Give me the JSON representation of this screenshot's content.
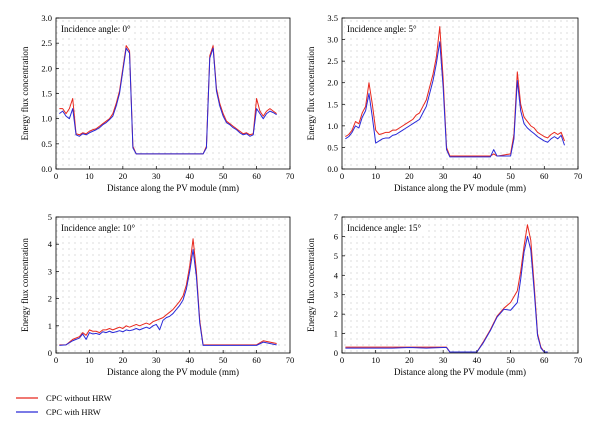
{
  "colors": {
    "without_hrw": "#e8281e",
    "with_hrw": "#2a2ad8",
    "dot_grid": "#9a9a9a"
  },
  "legend": {
    "without_hrw": "CPC without HRW",
    "with_hrw": "CPC with HRW"
  },
  "chart_data": [
    {
      "type": "line",
      "annotation": "Incidence angle: 0°",
      "xlabel": "Distance along the PV module (mm)",
      "ylabel": "Energy flux concentration",
      "xlim": [
        0,
        70
      ],
      "ylim": [
        0,
        3.0
      ],
      "xticks": [
        0,
        10,
        20,
        30,
        40,
        50,
        60,
        70
      ],
      "yticks": [
        0.0,
        0.5,
        1.0,
        1.5,
        2.0,
        2.5,
        3.0
      ],
      "ytick_decimals": 1,
      "grid": "dotted",
      "series": [
        {
          "name": "CPC without HRW",
          "x": [
            1,
            2,
            3,
            4,
            5,
            6,
            7,
            8,
            9,
            10,
            11,
            12,
            13,
            14,
            15,
            16,
            17,
            18,
            19,
            20,
            21,
            22,
            23,
            24,
            25,
            30,
            35,
            40,
            44,
            45,
            46,
            47,
            48,
            49,
            50,
            51,
            52,
            53,
            54,
            55,
            56,
            57,
            58,
            59,
            60,
            61,
            62,
            63,
            64,
            65,
            66
          ],
          "y": [
            1.2,
            1.2,
            1.1,
            1.2,
            1.4,
            0.7,
            0.68,
            0.72,
            0.7,
            0.75,
            0.78,
            0.8,
            0.85,
            0.9,
            0.95,
            1.0,
            1.1,
            1.3,
            1.55,
            2.0,
            2.45,
            2.35,
            0.45,
            0.3,
            0.3,
            0.3,
            0.3,
            0.3,
            0.3,
            0.45,
            2.25,
            2.45,
            1.6,
            1.3,
            1.1,
            0.95,
            0.9,
            0.85,
            0.8,
            0.75,
            0.7,
            0.72,
            0.68,
            0.7,
            1.4,
            1.15,
            1.05,
            1.15,
            1.2,
            1.15,
            1.1
          ]
        },
        {
          "name": "CPC with HRW",
          "x": [
            1,
            2,
            3,
            4,
            5,
            6,
            7,
            8,
            9,
            10,
            11,
            12,
            13,
            14,
            15,
            16,
            17,
            18,
            19,
            20,
            21,
            22,
            23,
            24,
            25,
            30,
            35,
            40,
            44,
            45,
            46,
            47,
            48,
            49,
            50,
            51,
            52,
            53,
            54,
            55,
            56,
            57,
            58,
            59,
            60,
            61,
            62,
            63,
            64,
            65,
            66
          ],
          "y": [
            1.1,
            1.15,
            1.05,
            1.0,
            1.2,
            0.68,
            0.65,
            0.7,
            0.68,
            0.72,
            0.75,
            0.78,
            0.82,
            0.88,
            0.92,
            0.98,
            1.05,
            1.25,
            1.5,
            1.95,
            2.4,
            2.3,
            0.42,
            0.3,
            0.3,
            0.3,
            0.3,
            0.3,
            0.3,
            0.42,
            2.2,
            2.4,
            1.55,
            1.25,
            1.05,
            0.92,
            0.88,
            0.82,
            0.78,
            0.72,
            0.68,
            0.7,
            0.65,
            0.68,
            1.2,
            1.1,
            1.0,
            1.1,
            1.15,
            1.12,
            1.08
          ]
        }
      ]
    },
    {
      "type": "line",
      "annotation": "Incidence angle: 5°",
      "xlabel": "Distance along the PV module (mm)",
      "ylabel": "Energy flux concentration",
      "xlim": [
        0,
        70
      ],
      "ylim": [
        0,
        3.5
      ],
      "xticks": [
        0,
        10,
        20,
        30,
        40,
        50,
        60,
        70
      ],
      "yticks": [
        0.0,
        0.5,
        1.0,
        1.5,
        2.0,
        2.5,
        3.0,
        3.5
      ],
      "ytick_decimals": 1,
      "grid": "dotted",
      "series": [
        {
          "name": "CPC without HRW",
          "x": [
            1,
            2,
            3,
            4,
            5,
            6,
            7,
            8,
            9,
            10,
            11,
            12,
            13,
            14,
            15,
            16,
            17,
            18,
            19,
            20,
            21,
            22,
            23,
            24,
            25,
            26,
            27,
            28,
            29,
            30,
            31,
            32,
            33,
            35,
            40,
            44,
            45,
            46,
            50,
            51,
            52,
            53,
            54,
            55,
            56,
            57,
            58,
            59,
            60,
            61,
            62,
            63,
            64,
            65,
            66
          ],
          "y": [
            0.75,
            0.8,
            0.9,
            1.1,
            1.05,
            1.3,
            1.45,
            2.0,
            1.5,
            0.9,
            0.8,
            0.82,
            0.85,
            0.85,
            0.9,
            0.9,
            0.95,
            1.0,
            1.05,
            1.1,
            1.15,
            1.25,
            1.3,
            1.45,
            1.6,
            1.9,
            2.2,
            2.6,
            3.3,
            2.1,
            0.5,
            0.3,
            0.3,
            0.3,
            0.3,
            0.3,
            0.35,
            0.3,
            0.35,
            0.8,
            2.25,
            1.5,
            1.2,
            1.1,
            1.0,
            0.95,
            0.85,
            0.8,
            0.75,
            0.72,
            0.8,
            0.85,
            0.8,
            0.85,
            0.65
          ]
        },
        {
          "name": "CPC with HRW",
          "x": [
            1,
            2,
            3,
            4,
            5,
            6,
            7,
            8,
            9,
            10,
            11,
            12,
            13,
            14,
            15,
            16,
            17,
            18,
            19,
            20,
            21,
            22,
            23,
            24,
            25,
            26,
            27,
            28,
            29,
            30,
            31,
            32,
            33,
            35,
            40,
            44,
            45,
            46,
            50,
            51,
            52,
            53,
            54,
            55,
            56,
            57,
            58,
            59,
            60,
            61,
            62,
            63,
            64,
            65,
            66
          ],
          "y": [
            0.7,
            0.75,
            0.85,
            1.0,
            0.95,
            1.2,
            1.35,
            1.75,
            1.2,
            0.6,
            0.65,
            0.7,
            0.72,
            0.72,
            0.78,
            0.8,
            0.85,
            0.9,
            0.95,
            1.0,
            1.05,
            1.1,
            1.15,
            1.3,
            1.45,
            1.75,
            2.05,
            2.45,
            2.95,
            1.9,
            0.45,
            0.28,
            0.28,
            0.28,
            0.28,
            0.28,
            0.45,
            0.3,
            0.3,
            0.7,
            2.05,
            1.35,
            1.05,
            0.95,
            0.88,
            0.82,
            0.75,
            0.7,
            0.65,
            0.62,
            0.7,
            0.75,
            0.7,
            0.78,
            0.55
          ]
        }
      ]
    },
    {
      "type": "line",
      "annotation": "Incidence angle: 10°",
      "xlabel": "Distance along the PV module (mm)",
      "ylabel": "Energy flux concentration",
      "xlim": [
        0,
        70
      ],
      "ylim": [
        0,
        5
      ],
      "xticks": [
        0,
        10,
        20,
        30,
        40,
        50,
        60,
        70
      ],
      "yticks": [
        0,
        1,
        2,
        3,
        4,
        5
      ],
      "ytick_decimals": 0,
      "grid": "dotted",
      "series": [
        {
          "name": "CPC without HRW",
          "x": [
            1,
            3,
            5,
            7,
            8,
            9,
            10,
            11,
            12,
            13,
            14,
            15,
            16,
            17,
            18,
            19,
            20,
            21,
            22,
            23,
            24,
            25,
            26,
            27,
            28,
            29,
            30,
            31,
            32,
            33,
            34,
            35,
            36,
            37,
            38,
            39,
            40,
            41,
            42,
            43,
            44,
            45,
            50,
            55,
            60,
            62,
            64,
            66
          ],
          "y": [
            0.3,
            0.3,
            0.5,
            0.6,
            0.75,
            0.65,
            0.85,
            0.8,
            0.8,
            0.75,
            0.85,
            0.85,
            0.9,
            0.85,
            0.9,
            0.95,
            0.9,
            1.0,
            0.95,
            1.0,
            1.05,
            1.0,
            1.05,
            1.1,
            1.05,
            1.15,
            1.2,
            1.25,
            1.3,
            1.4,
            1.5,
            1.6,
            1.75,
            1.9,
            2.1,
            2.5,
            3.2,
            4.2,
            3.0,
            1.2,
            0.3,
            0.3,
            0.3,
            0.3,
            0.3,
            0.45,
            0.4,
            0.35
          ]
        },
        {
          "name": "CPC with HRW",
          "x": [
            1,
            3,
            5,
            7,
            8,
            9,
            10,
            11,
            12,
            13,
            14,
            15,
            16,
            17,
            18,
            19,
            20,
            21,
            22,
            23,
            24,
            25,
            26,
            27,
            28,
            29,
            30,
            31,
            32,
            33,
            34,
            35,
            36,
            37,
            38,
            39,
            40,
            41,
            42,
            43,
            44,
            45,
            50,
            55,
            60,
            62,
            64,
            66
          ],
          "y": [
            0.28,
            0.3,
            0.45,
            0.55,
            0.7,
            0.5,
            0.75,
            0.7,
            0.72,
            0.68,
            0.78,
            0.75,
            0.8,
            0.75,
            0.78,
            0.82,
            0.78,
            0.85,
            0.82,
            0.85,
            0.9,
            0.85,
            0.9,
            0.95,
            0.9,
            1.0,
            1.05,
            0.85,
            1.2,
            1.3,
            1.35,
            1.45,
            1.6,
            1.75,
            1.95,
            2.35,
            3.0,
            3.8,
            2.8,
            1.1,
            0.28,
            0.28,
            0.28,
            0.28,
            0.28,
            0.4,
            0.35,
            0.3
          ]
        }
      ]
    },
    {
      "type": "line",
      "annotation": "Incidence angle: 15°",
      "xlabel": "Distance along the PV module (mm)",
      "ylabel": "Energy flux concentration",
      "xlim": [
        0,
        70
      ],
      "ylim": [
        0,
        7
      ],
      "xticks": [
        0,
        10,
        20,
        30,
        40,
        50,
        60,
        70
      ],
      "yticks": [
        0,
        1,
        2,
        3,
        4,
        5,
        6,
        7
      ],
      "ytick_decimals": 0,
      "grid": "dotted",
      "series": [
        {
          "name": "CPC without HRW",
          "x": [
            1,
            5,
            10,
            15,
            20,
            25,
            30,
            31,
            32,
            33,
            35,
            38,
            40,
            42,
            44,
            46,
            48,
            50,
            52,
            53,
            54,
            55,
            56,
            57,
            58,
            59,
            60,
            61
          ],
          "y": [
            0.3,
            0.3,
            0.3,
            0.3,
            0.3,
            0.3,
            0.3,
            0.3,
            0.05,
            0.05,
            0.05,
            0.05,
            0.05,
            0.6,
            1.2,
            1.9,
            2.3,
            2.6,
            3.2,
            4.2,
            5.5,
            6.6,
            5.8,
            3.5,
            1.0,
            0.3,
            0.05,
            0.05
          ]
        },
        {
          "name": "CPC with HRW",
          "x": [
            1,
            5,
            10,
            15,
            20,
            25,
            30,
            31,
            32,
            33,
            35,
            38,
            40,
            42,
            44,
            46,
            48,
            50,
            52,
            53,
            54,
            55,
            56,
            57,
            58,
            59,
            60,
            61
          ],
          "y": [
            0.25,
            0.25,
            0.25,
            0.25,
            0.28,
            0.25,
            0.28,
            0.28,
            0.05,
            0.05,
            0.05,
            0.05,
            0.05,
            0.55,
            1.15,
            1.85,
            2.25,
            2.2,
            2.6,
            3.8,
            5.2,
            6.0,
            5.3,
            3.2,
            0.9,
            0.25,
            0.05,
            0.05
          ]
        }
      ]
    }
  ]
}
